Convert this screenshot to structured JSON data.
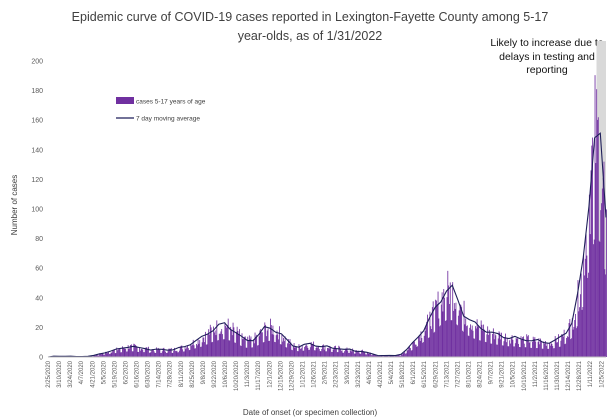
{
  "chart_data": {
    "type": "bar",
    "title": "Epidemic curve of COVID-19 cases reported in Lexington-Fayette County among 5-17 year-olds, as of 1/31/2022",
    "xlabel": "Date of onset (or specimen collection)",
    "ylabel": "Number of cases",
    "ylim": [
      0,
      200
    ],
    "yticks": [
      0,
      20,
      40,
      60,
      80,
      100,
      120,
      140,
      160,
      180,
      200
    ],
    "x_range": [
      "2/25/2020",
      "1/31/2022"
    ],
    "x_tick_labels": [
      "2/25/2020",
      "3/10/2020",
      "3/24/2020",
      "4/7/2020",
      "4/21/2020",
      "5/5/2020",
      "5/19/2020",
      "6/2/2020",
      "6/16/2020",
      "6/30/2020",
      "7/14/2020",
      "7/28/2020",
      "8/11/2020",
      "8/25/2020",
      "9/8/2020",
      "9/22/2020",
      "10/6/2020",
      "10/20/2020",
      "11/3/2020",
      "11/17/2020",
      "12/1/2020",
      "12/15/2020",
      "12/29/2020",
      "1/12/2021",
      "1/26/2021",
      "2/9/2021",
      "2/23/2021",
      "3/9/2021",
      "3/23/2021",
      "4/6/2021",
      "4/20/2021",
      "5/4/2021",
      "5/18/2021",
      "6/1/2021",
      "6/15/2021",
      "6/29/2021",
      "7/13/2021",
      "7/27/2021",
      "8/10/2021",
      "8/24/2021",
      "9/7/2021",
      "9/21/2021",
      "10/5/2021",
      "10/19/2021",
      "11/2/2021",
      "11/16/2021",
      "11/30/2021",
      "12/14/2021",
      "12/28/2021",
      "1/11/2022",
      "1/25/2022"
    ],
    "grid": false,
    "legend_position": "top-left",
    "series": [
      {
        "name": "cases 5-17 years of age",
        "type": "bar",
        "color": "#7030a0",
        "weekly_avg_daily_cases": [
          0,
          0.5,
          0.5,
          0.5,
          0.5,
          0.3,
          0.3,
          0.5,
          1,
          2,
          3,
          4,
          5,
          6,
          7,
          7,
          6,
          6,
          5,
          5,
          5,
          5,
          5,
          6,
          7,
          9,
          11,
          13,
          16,
          19,
          21,
          22,
          20,
          17,
          13,
          11,
          12,
          15,
          19,
          20,
          18,
          15,
          11,
          8,
          7,
          8,
          9,
          8,
          7,
          7,
          6,
          6,
          5,
          5,
          4,
          4,
          3,
          2,
          1,
          1,
          1,
          1,
          2,
          5,
          9,
          14,
          19,
          25,
          32,
          40,
          46,
          45,
          38,
          30,
          25,
          22,
          20,
          18,
          16,
          15,
          14,
          13,
          13,
          12,
          12,
          11,
          11,
          10,
          10,
          11,
          13,
          17,
          24,
          40,
          65,
          110,
          150,
          140,
          95
        ]
      },
      {
        "name": "7 day moving average",
        "type": "line",
        "color": "#1f1f5a",
        "weekly_values": [
          0,
          0.5,
          0.5,
          0.5,
          0.5,
          0.3,
          0.3,
          0.5,
          1,
          2,
          3,
          4,
          5,
          6,
          7,
          7,
          6,
          6,
          5,
          5,
          5,
          5,
          5,
          6,
          7,
          9,
          11,
          13,
          16,
          19,
          21,
          22,
          20,
          17,
          13,
          11,
          12,
          15,
          19,
          20,
          18,
          15,
          11,
          8,
          7,
          8,
          9,
          8,
          7,
          7,
          6,
          6,
          5,
          5,
          4,
          4,
          3,
          2,
          1,
          1,
          1,
          1,
          2,
          5,
          9,
          14,
          19,
          25,
          32,
          40,
          46,
          45,
          38,
          30,
          25,
          22,
          20,
          18,
          16,
          15,
          14,
          13,
          13,
          12,
          12,
          11,
          11,
          10,
          10,
          11,
          13,
          17,
          24,
          40,
          65,
          110,
          150,
          140,
          95
        ]
      }
    ],
    "annotations": [
      {
        "text": "Likely to increase due to delays in testing and reporting",
        "shaded_from": "1/19/2022",
        "shaded_to": "1/31/2022",
        "shade_color": "#d9d9d9"
      }
    ]
  }
}
